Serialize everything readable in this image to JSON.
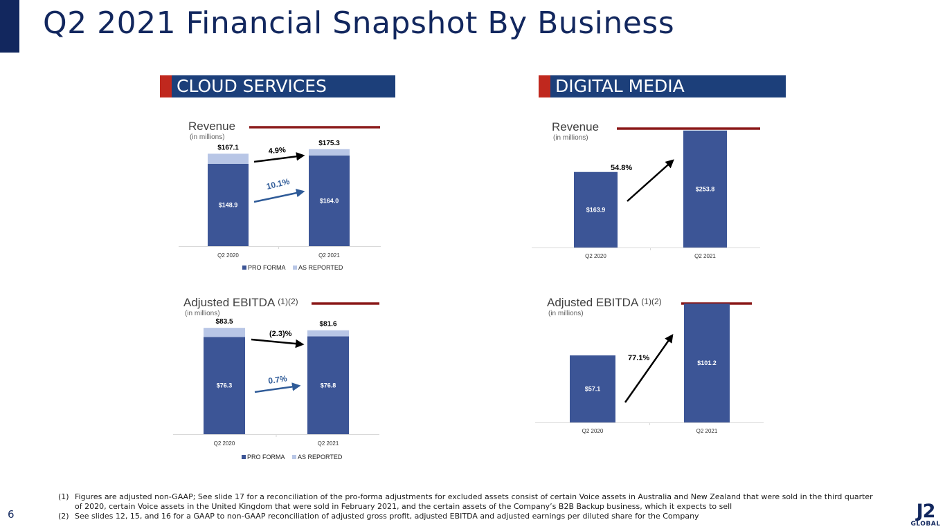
{
  "slide": {
    "title": "Q2 2021 Financial Snapshot By Business",
    "page_number": "6",
    "logo_mark": "J2",
    "logo_word": "GLOBAL",
    "accent_color": "#c0281e",
    "brand_color": "#12275e"
  },
  "sections": {
    "cloud": "CLOUD SERVICES",
    "digital": "DIGITAL MEDIA"
  },
  "chart_data": [
    {
      "type": "bar",
      "stacked": true,
      "title": "Revenue",
      "subtitle": "(in millions)",
      "categories": [
        "Q2 2020",
        "Q2 2021"
      ],
      "series": [
        {
          "name": "PRO FORMA",
          "values": [
            148.9,
            164.0
          ],
          "labels": [
            "$148.9",
            "$164.0"
          ],
          "color": "#3c5596"
        },
        {
          "name": "AS REPORTED",
          "values": [
            18.2,
            11.3
          ],
          "color": "#b8c6e6"
        }
      ],
      "totals": [
        "$167.1",
        "$175.3"
      ],
      "growth": "4.9%",
      "growth_proforma": "10.1%",
      "legend": "bottom",
      "ylim": [
        0,
        200
      ]
    },
    {
      "type": "bar",
      "title": "Revenue",
      "subtitle": "(in millions)",
      "categories": [
        "Q2 2020",
        "Q2 2021"
      ],
      "series": [
        {
          "values": [
            163.9,
            253.8
          ],
          "labels": [
            "$163.9",
            "$253.8"
          ],
          "color": "#3c5596"
        }
      ],
      "growth": "54.8%",
      "ylim": [
        0,
        270
      ]
    },
    {
      "type": "bar",
      "stacked": true,
      "title": "Adjusted EBITDA",
      "title_note": "(1)(2)",
      "subtitle": "(in millions)",
      "categories": [
        "Q2 2020",
        "Q2 2021"
      ],
      "series": [
        {
          "name": "PRO FORMA",
          "values": [
            76.3,
            76.8
          ],
          "labels": [
            "$76.3",
            "$76.8"
          ],
          "color": "#3c5596"
        },
        {
          "name": "AS REPORTED",
          "values": [
            7.2,
            4.8
          ],
          "color": "#b8c6e6"
        }
      ],
      "totals": [
        "$83.5",
        "$81.6"
      ],
      "growth": "(2.3)%",
      "growth_proforma": "0.7%",
      "legend": "bottom",
      "ylim": [
        0,
        95
      ]
    },
    {
      "type": "bar",
      "title": "Adjusted EBITDA",
      "title_note": "(1)(2)",
      "subtitle": "(in millions)",
      "categories": [
        "Q2 2020",
        "Q2 2021"
      ],
      "series": [
        {
          "values": [
            57.1,
            101.2
          ],
          "labels": [
            "$57.1",
            "$101.2"
          ],
          "color": "#3c5596"
        }
      ],
      "growth": "77.1%",
      "ylim": [
        0,
        106
      ]
    }
  ],
  "footnotes": [
    {
      "num": "(1)",
      "text": "Figures are adjusted non-GAAP; See slide 17 for a reconciliation of the pro-forma adjustments for excluded assets consist of certain Voice assets in Australia and New Zealand that were sold in the third quarter of 2020, certain Voice assets in the United Kingdom that were sold in February 2021, and the certain assets of the Company’s B2B Backup business, which it expects to sell"
    },
    {
      "num": "(2)",
      "text": "See slides 12, 15, and 16 for a GAAP to non-GAAP reconciliation of adjusted gross profit, adjusted EBITDA and adjusted earnings per diluted share for the Company"
    }
  ]
}
